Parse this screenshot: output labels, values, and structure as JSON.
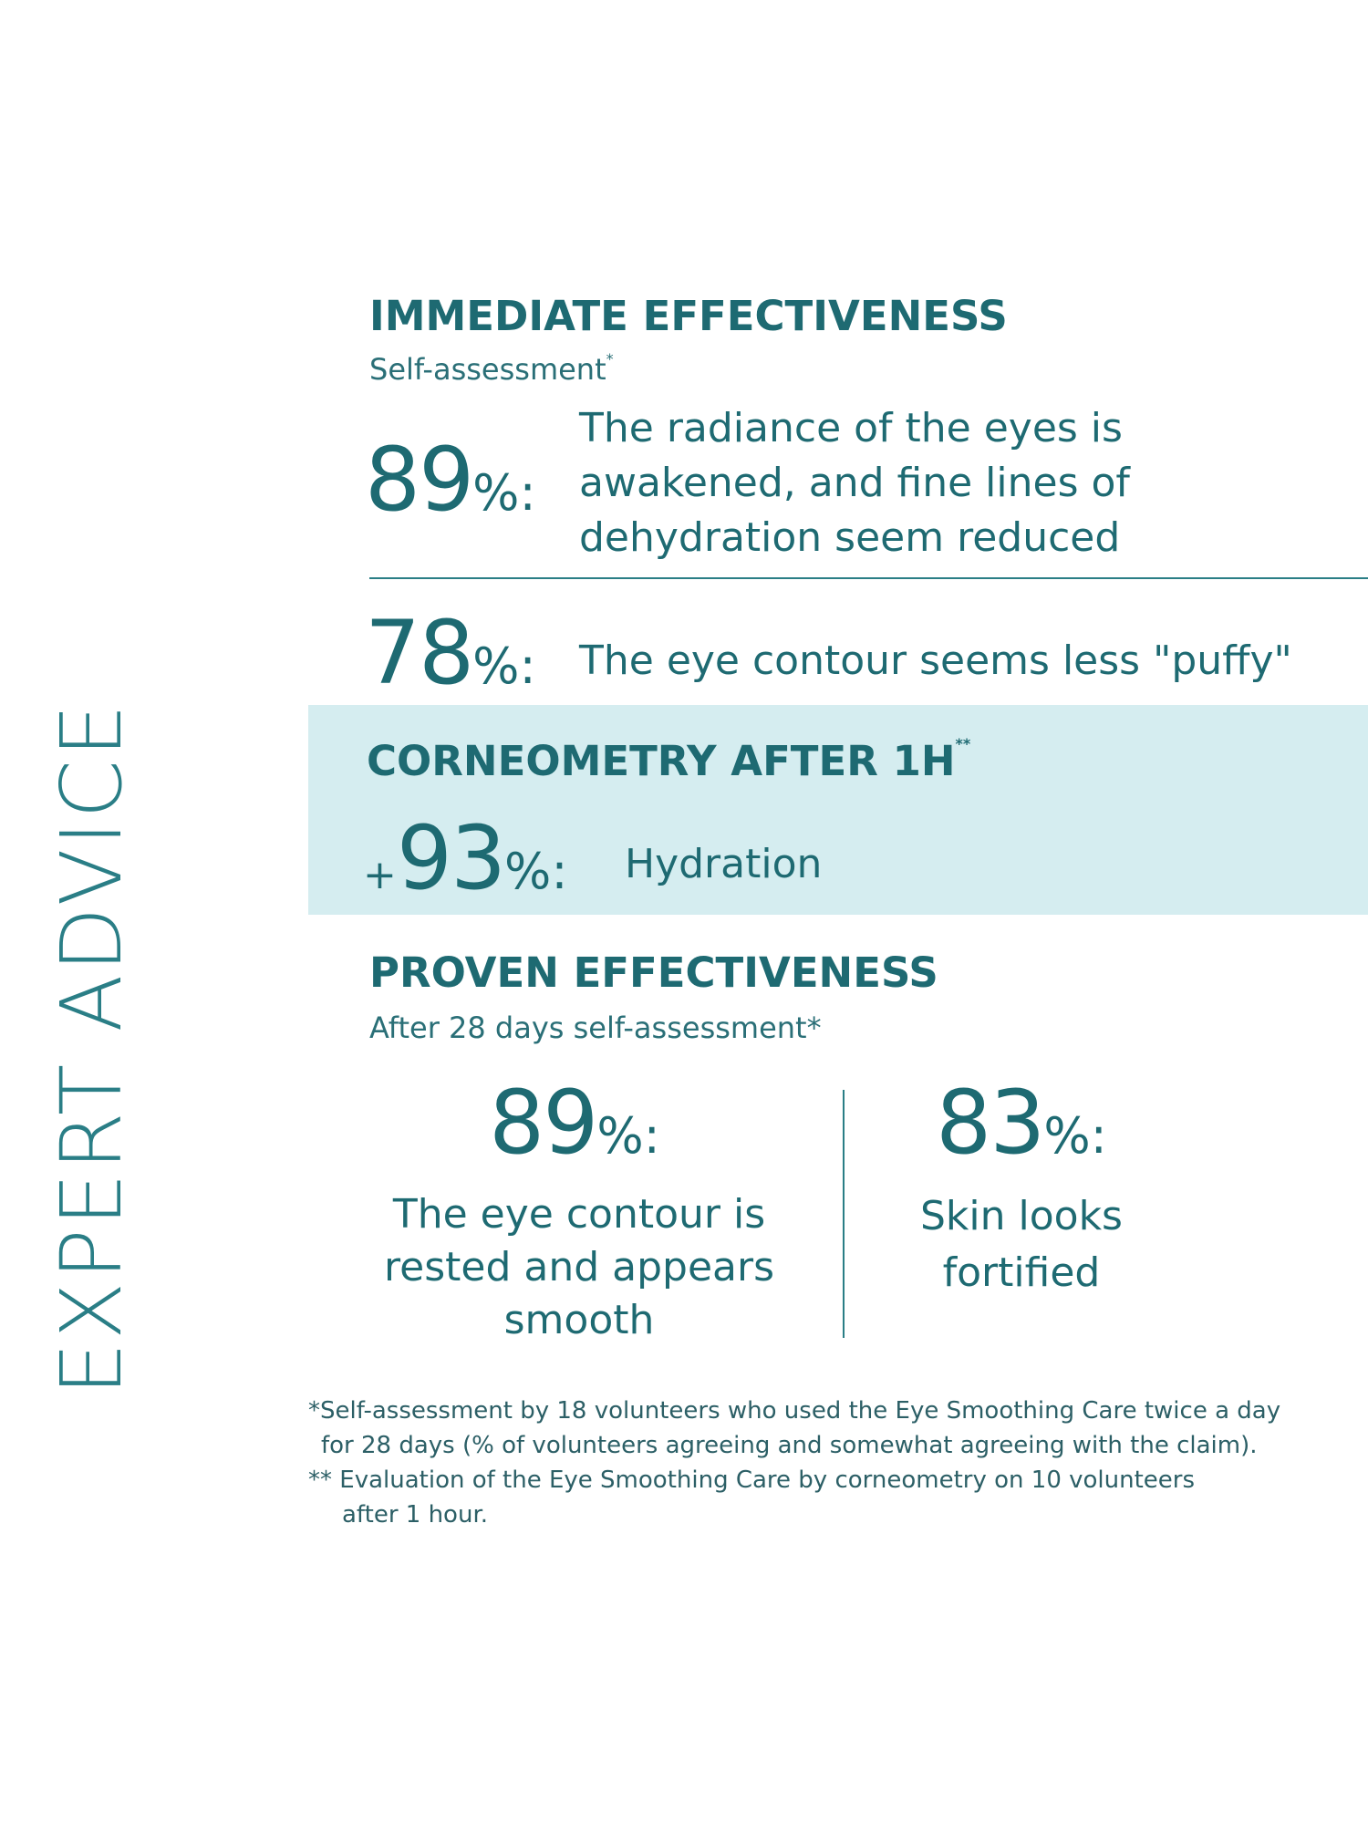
{
  "side_title": "EXPERT ADVICE",
  "immediate": {
    "title": "IMMEDIATE EFFECTIVENESS",
    "subtitle": "Self-assessment",
    "subtitle_mark": "*",
    "stat1": {
      "number": "89",
      "suffix": "%:",
      "lines": [
        "The radiance of the eyes is",
        "awakened, and fine lines of",
        "dehydration seem reduced"
      ]
    },
    "stat2": {
      "number": "78",
      "suffix": "%:",
      "text": "The eye contour seems less \"puffy\""
    }
  },
  "corneometry": {
    "title": "CORNEOMETRY AFTER 1H",
    "title_mark": "**",
    "prefix": "+",
    "number": "93",
    "suffix": "%:",
    "text": "Hydration"
  },
  "proven": {
    "title": "PROVEN EFFECTIVENESS",
    "subtitle": "After 28 days self-assessment*",
    "left": {
      "number": "89",
      "suffix": "%:",
      "lines": [
        "The eye contour is",
        "rested and appears",
        "smooth"
      ]
    },
    "right": {
      "number": "83",
      "suffix": "%:",
      "lines": [
        "Skin looks",
        "fortified"
      ]
    }
  },
  "footnotes": {
    "f1_line1": "*Self-assessment by 18 volunteers who used the Eye Smoothing Care twice a day",
    "f1_line2": "for 28 days (% of volunteers agreeing and somewhat agreeing with the claim).",
    "f2_line1": "** Evaluation of the Eye Smoothing Care by corneometry on 10 volunteers",
    "f2_line2": "after 1 hour."
  },
  "colors": {
    "text": "#1e6a72",
    "band": "#d5edf0",
    "background": "#ffffff"
  }
}
